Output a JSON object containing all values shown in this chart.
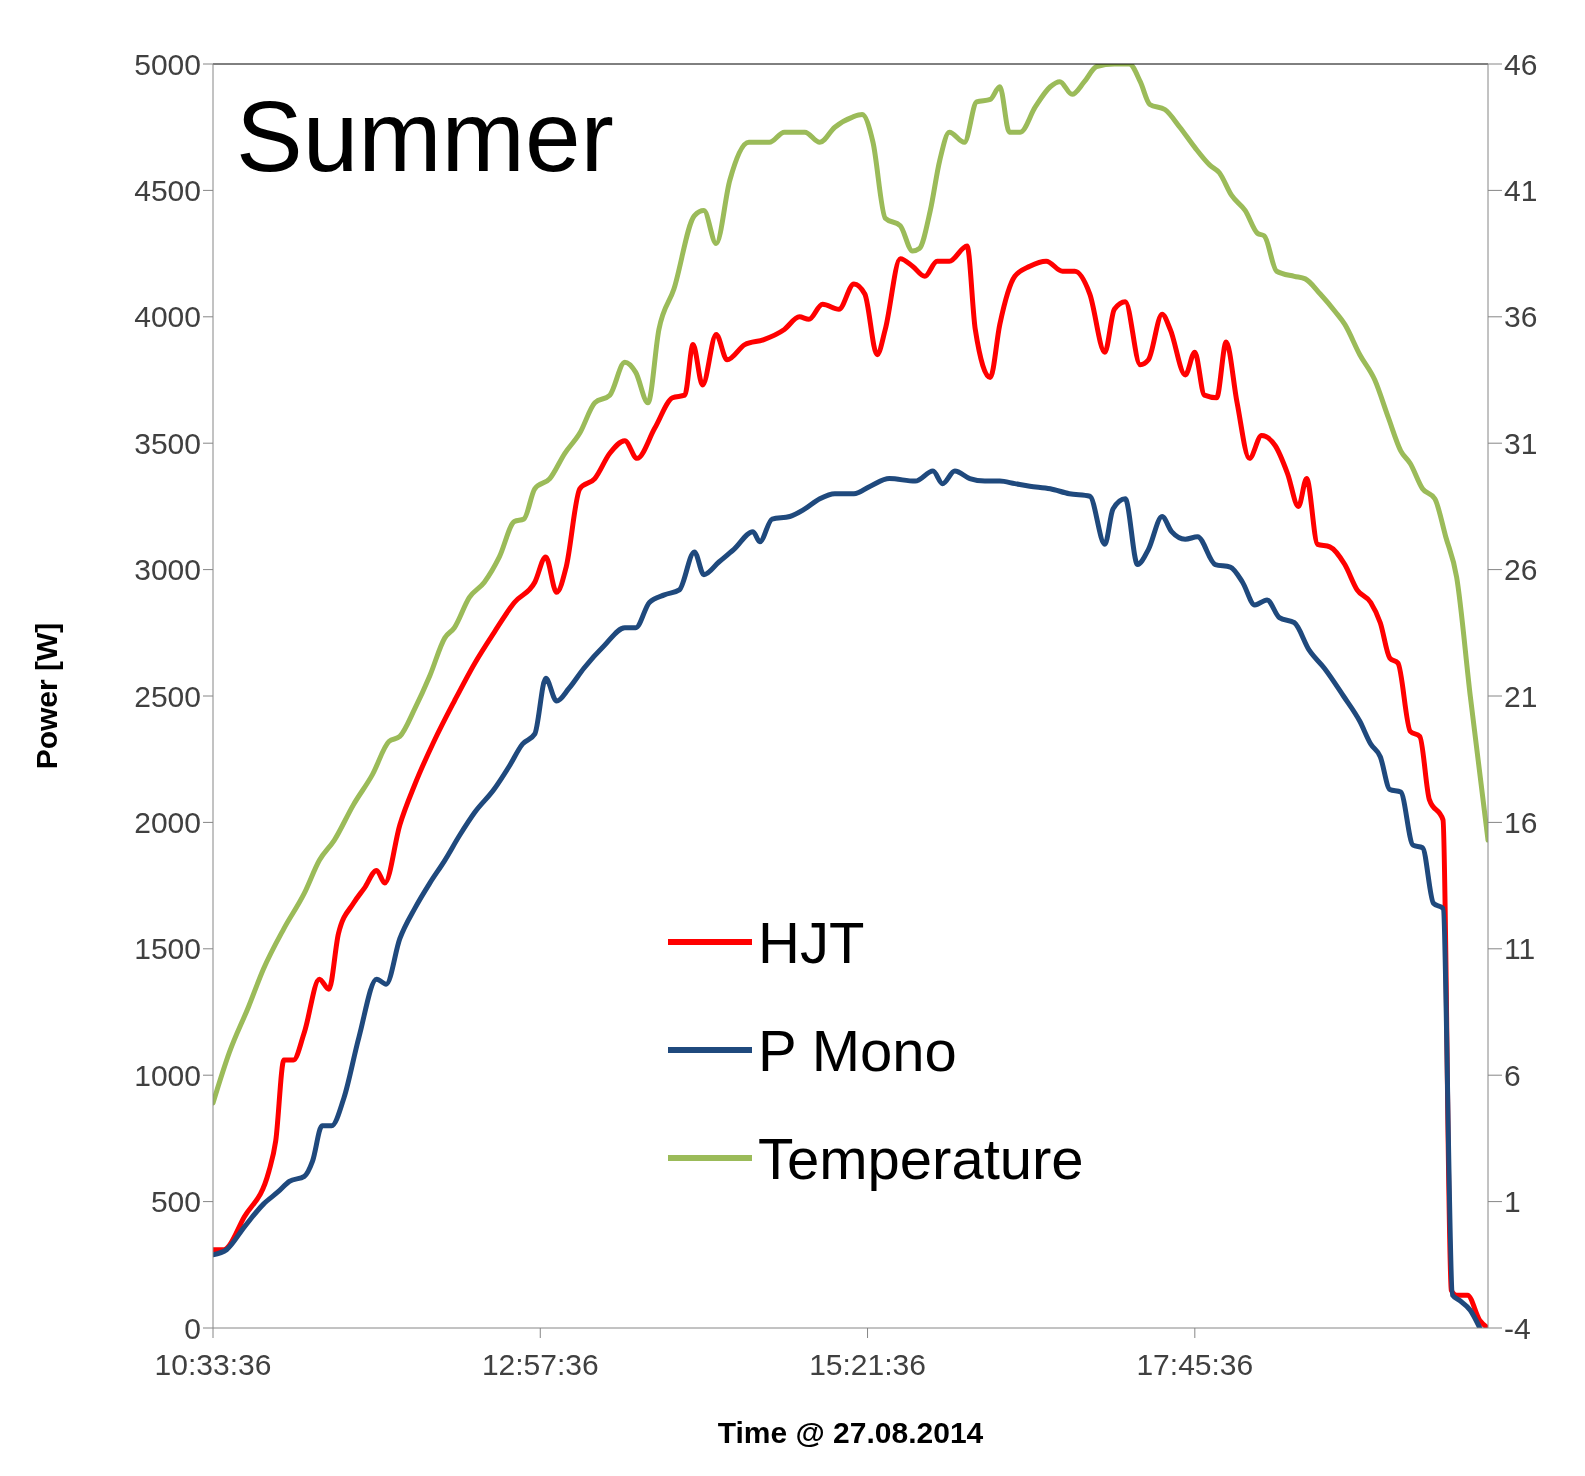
{
  "chart_data": {
    "type": "line",
    "title": "Summer",
    "xlabel": "Time @ 27.08.2014",
    "ylabel": "Power [W]",
    "xlim": [
      10.56,
      19.91
    ],
    "xticks": [
      {
        "value": 10.56,
        "label": "10:33:36"
      },
      {
        "value": 12.96,
        "label": "12:57:36"
      },
      {
        "value": 15.36,
        "label": "15:21:36"
      },
      {
        "value": 17.76,
        "label": "17:45:36"
      }
    ],
    "ylim": [
      0,
      5000
    ],
    "yticks": [
      0,
      500,
      1000,
      1500,
      2000,
      2500,
      3000,
      3500,
      4000,
      4500,
      5000
    ],
    "y2lim": [
      -4,
      46
    ],
    "y2ticks": [
      -4,
      1,
      6,
      11,
      16,
      21,
      26,
      31,
      36,
      41,
      46
    ],
    "grid": false,
    "legend": "bottom",
    "series": [
      {
        "name": "HJT",
        "color": "#ff0000",
        "x": [
          10.56,
          10.64,
          10.79,
          10.97,
          11.02,
          11.08,
          11.15,
          11.23,
          11.34,
          11.41,
          11.48,
          11.59,
          11.67,
          11.76,
          11.82,
          11.93,
          12.04,
          12.18,
          12.33,
          12.48,
          12.62,
          12.77,
          12.92,
          13.0,
          13.08,
          13.15,
          13.25,
          13.36,
          13.47,
          13.58,
          13.67,
          13.8,
          13.93,
          14.02,
          14.08,
          14.15,
          14.25,
          14.33,
          14.46,
          14.6,
          14.75,
          14.86,
          14.93,
          15.03,
          15.15,
          15.26,
          15.34,
          15.43,
          15.49,
          15.6,
          15.69,
          15.78,
          15.87,
          15.96,
          16.09,
          16.15,
          16.26,
          16.33,
          16.44,
          16.55,
          16.67,
          16.79,
          16.88,
          16.99,
          17.1,
          17.17,
          17.25,
          17.36,
          17.42,
          17.52,
          17.58,
          17.69,
          17.76,
          17.83,
          17.92,
          17.99,
          18.07,
          18.16,
          18.25,
          18.35,
          18.44,
          18.52,
          18.58,
          18.66,
          18.75,
          18.86,
          18.95,
          19.05,
          19.12,
          19.19,
          19.25,
          19.34,
          19.41,
          19.48,
          19.58,
          19.64,
          19.68,
          19.76,
          19.85,
          19.91
        ],
        "values": [
          310,
          310,
          440,
          620,
          740,
          1060,
          1060,
          1170,
          1380,
          1340,
          1560,
          1680,
          1740,
          1810,
          1760,
          1990,
          2150,
          2320,
          2480,
          2630,
          2750,
          2870,
          2950,
          3050,
          2910,
          3010,
          3320,
          3360,
          3460,
          3510,
          3440,
          3560,
          3680,
          3690,
          3890,
          3730,
          3930,
          3830,
          3890,
          3910,
          3950,
          4000,
          3990,
          4050,
          4030,
          4130,
          4090,
          3850,
          3950,
          4230,
          4200,
          4160,
          4220,
          4220,
          4280,
          3950,
          3760,
          3970,
          4160,
          4200,
          4220,
          4180,
          4180,
          4090,
          3860,
          4030,
          4060,
          3810,
          3830,
          4010,
          3950,
          3770,
          3860,
          3690,
          3680,
          3900,
          3660,
          3440,
          3530,
          3490,
          3380,
          3250,
          3360,
          3100,
          3090,
          3020,
          2920,
          2870,
          2790,
          2650,
          2630,
          2360,
          2340,
          2090,
          2010,
          150,
          130,
          130,
          30,
          0
        ]
      },
      {
        "name": "P Mono",
        "color": "#1f497d",
        "x": [
          10.56,
          10.66,
          10.79,
          10.93,
          11.04,
          11.12,
          11.23,
          11.29,
          11.36,
          11.43,
          11.52,
          11.63,
          11.76,
          11.83,
          11.93,
          12.04,
          12.15,
          12.26,
          12.37,
          12.48,
          12.62,
          12.73,
          12.83,
          12.92,
          13.0,
          13.08,
          13.17,
          13.28,
          13.43,
          13.58,
          13.66,
          13.76,
          13.87,
          13.98,
          14.09,
          14.16,
          14.27,
          14.38,
          14.52,
          14.57,
          14.66,
          14.79,
          14.9,
          15.01,
          15.12,
          15.26,
          15.38,
          15.52,
          15.71,
          15.84,
          15.91,
          16.0,
          16.11,
          16.22,
          16.33,
          16.44,
          16.55,
          16.7,
          16.84,
          16.99,
          17.1,
          17.16,
          17.25,
          17.34,
          17.42,
          17.52,
          17.59,
          17.69,
          17.78,
          17.91,
          18.02,
          18.11,
          18.2,
          18.29,
          18.38,
          18.49,
          18.6,
          18.71,
          18.85,
          18.97,
          19.05,
          19.12,
          19.19,
          19.27,
          19.36,
          19.43,
          19.51,
          19.58,
          19.65,
          19.7,
          19.78,
          19.85
        ],
        "values": [
          290,
          310,
          400,
          490,
          540,
          580,
          600,
          660,
          800,
          800,
          910,
          1150,
          1380,
          1360,
          1540,
          1660,
          1760,
          1850,
          1950,
          2040,
          2130,
          2220,
          2310,
          2350,
          2570,
          2480,
          2530,
          2610,
          2700,
          2770,
          2770,
          2870,
          2900,
          2920,
          3070,
          2980,
          3030,
          3080,
          3150,
          3110,
          3200,
          3210,
          3240,
          3280,
          3300,
          3300,
          3330,
          3360,
          3350,
          3390,
          3340,
          3390,
          3360,
          3350,
          3350,
          3340,
          3330,
          3320,
          3300,
          3290,
          3100,
          3240,
          3280,
          3020,
          3080,
          3210,
          3150,
          3120,
          3130,
          3020,
          3010,
          2950,
          2860,
          2880,
          2810,
          2790,
          2680,
          2610,
          2500,
          2400,
          2310,
          2260,
          2130,
          2120,
          1910,
          1900,
          1680,
          1660,
          130,
          110,
          70,
          0
        ]
      },
      {
        "name": "Temperature",
        "color": "#9bbb59",
        "axis": "y2",
        "x": [
          10.56,
          10.68,
          10.82,
          10.93,
          11.08,
          11.23,
          11.34,
          11.45,
          11.59,
          11.73,
          11.85,
          11.93,
          12.04,
          12.15,
          12.26,
          12.33,
          12.44,
          12.55,
          12.66,
          12.77,
          12.84,
          12.92,
          13.03,
          13.14,
          13.25,
          13.36,
          13.47,
          13.58,
          13.66,
          13.75,
          13.83,
          13.94,
          14.09,
          14.16,
          14.25,
          14.35,
          14.49,
          14.64,
          14.75,
          14.9,
          15.01,
          15.12,
          15.25,
          15.32,
          15.4,
          15.49,
          15.6,
          15.69,
          15.74,
          15.82,
          15.89,
          15.96,
          16.07,
          16.16,
          16.26,
          16.33,
          16.4,
          16.48,
          16.59,
          16.7,
          16.77,
          16.86,
          16.95,
          17.04,
          17.17,
          17.28,
          17.36,
          17.43,
          17.54,
          17.65,
          17.76,
          17.87,
          17.94,
          18.03,
          18.13,
          18.22,
          18.27,
          18.36,
          18.49,
          18.57,
          18.68,
          18.79,
          18.86,
          18.97,
          19.08,
          19.18,
          19.27,
          19.34,
          19.43,
          19.52,
          19.6,
          19.68,
          19.78,
          19.91
        ],
        "values": [
          4.9,
          6.9,
          8.7,
          10.2,
          11.8,
          13.2,
          14.5,
          15.3,
          16.7,
          17.9,
          19.2,
          19.4,
          20.5,
          21.8,
          23.3,
          23.7,
          24.9,
          25.5,
          26.5,
          27.9,
          28.0,
          29.2,
          29.6,
          30.6,
          31.4,
          32.6,
          32.9,
          34.2,
          33.8,
          32.6,
          35.5,
          37.1,
          40.0,
          40.2,
          38.9,
          41.4,
          42.9,
          42.9,
          43.3,
          43.3,
          42.9,
          43.5,
          43.9,
          44.0,
          42.9,
          39.9,
          39.6,
          38.6,
          38.7,
          40.2,
          42.2,
          43.3,
          42.9,
          44.5,
          44.6,
          45.1,
          43.3,
          43.3,
          44.3,
          45.1,
          45.3,
          44.8,
          45.3,
          45.9,
          46.0,
          46.0,
          45.3,
          44.4,
          44.2,
          43.5,
          42.7,
          42.0,
          41.7,
          40.8,
          40.2,
          39.3,
          39.2,
          37.8,
          37.6,
          37.5,
          36.9,
          36.2,
          35.7,
          34.5,
          33.5,
          32.0,
          30.7,
          30.2,
          29.2,
          28.8,
          27.3,
          25.7,
          21.0,
          15.3
        ]
      }
    ]
  }
}
